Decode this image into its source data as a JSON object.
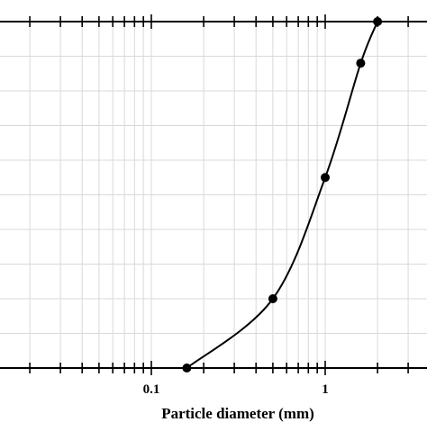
{
  "chart_data": {
    "type": "line",
    "xlabel": "Particle diameter (mm)",
    "ylabel": "",
    "title": "",
    "x_scale": "log",
    "xlim": [
      0.01,
      5
    ],
    "ylim": [
      0,
      100
    ],
    "x_tick_labels": [
      {
        "value": 0.1,
        "label": "0.1"
      },
      {
        "value": 1,
        "label": "1"
      }
    ],
    "grid": true,
    "series": [
      {
        "points": [
          {
            "x": 0.16,
            "y": 0
          },
          {
            "x": 0.5,
            "y": 20
          },
          {
            "x": 1.0,
            "y": 55
          },
          {
            "x": 1.6,
            "y": 88
          },
          {
            "x": 2.0,
            "y": 100
          }
        ]
      }
    ]
  },
  "colors": {
    "line": "#000000",
    "marker": "#000000",
    "grid": "#d9d9d9",
    "frame": "#000000"
  }
}
